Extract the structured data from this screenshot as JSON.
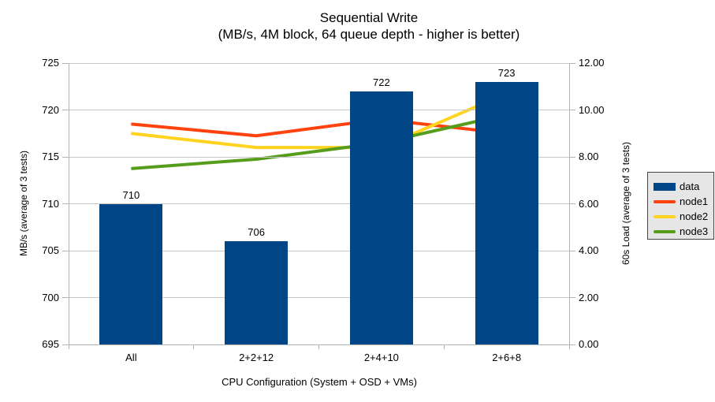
{
  "title": "Sequential Write",
  "subtitle": "(MB/s, 4M block, 64 queue depth - higher is better)",
  "chart_data": {
    "type": "bar+line combo",
    "categories": [
      "All",
      "2+2+12",
      "2+4+10",
      "2+6+8"
    ],
    "bar_series": {
      "name": "data",
      "axis": "left",
      "color": "#004586",
      "values": [
        710,
        706,
        722,
        723
      ]
    },
    "line_series": [
      {
        "name": "node1",
        "axis": "right",
        "color": "#FF420E",
        "values": [
          9.4,
          8.9,
          9.6,
          9.0
        ]
      },
      {
        "name": "node2",
        "axis": "right",
        "color": "#FFD320",
        "values": [
          9.0,
          8.4,
          8.4,
          10.7
        ]
      },
      {
        "name": "node3",
        "axis": "right",
        "color": "#579D1C",
        "values": [
          7.5,
          7.9,
          8.6,
          9.8
        ]
      }
    ],
    "left_axis": {
      "label": "MB/s (average of 3 tests)",
      "min": 695,
      "max": 725,
      "step": 5,
      "ticks": [
        "695",
        "700",
        "705",
        "710",
        "715",
        "720",
        "725"
      ]
    },
    "right_axis": {
      "label": "60s Load (average of 3 tests)",
      "min": 0,
      "max": 12,
      "step": 2,
      "ticks": [
        "0.00",
        "2.00",
        "4.00",
        "6.00",
        "8.00",
        "10.00",
        "12.00"
      ]
    },
    "x_axis": {
      "label": "CPU Configuration (System + OSD + VMs)"
    },
    "legend": {
      "position": "right",
      "entries": [
        "data",
        "node1",
        "node2",
        "node3"
      ]
    },
    "grid": "horizontal gridlines on",
    "colors": {
      "grid": "#c6c6c6",
      "axis": "#b3b3b3",
      "text": "#000000",
      "legend_bg": "#e6e6e6",
      "legend_border": "#454545",
      "background": "#ffffff"
    }
  }
}
